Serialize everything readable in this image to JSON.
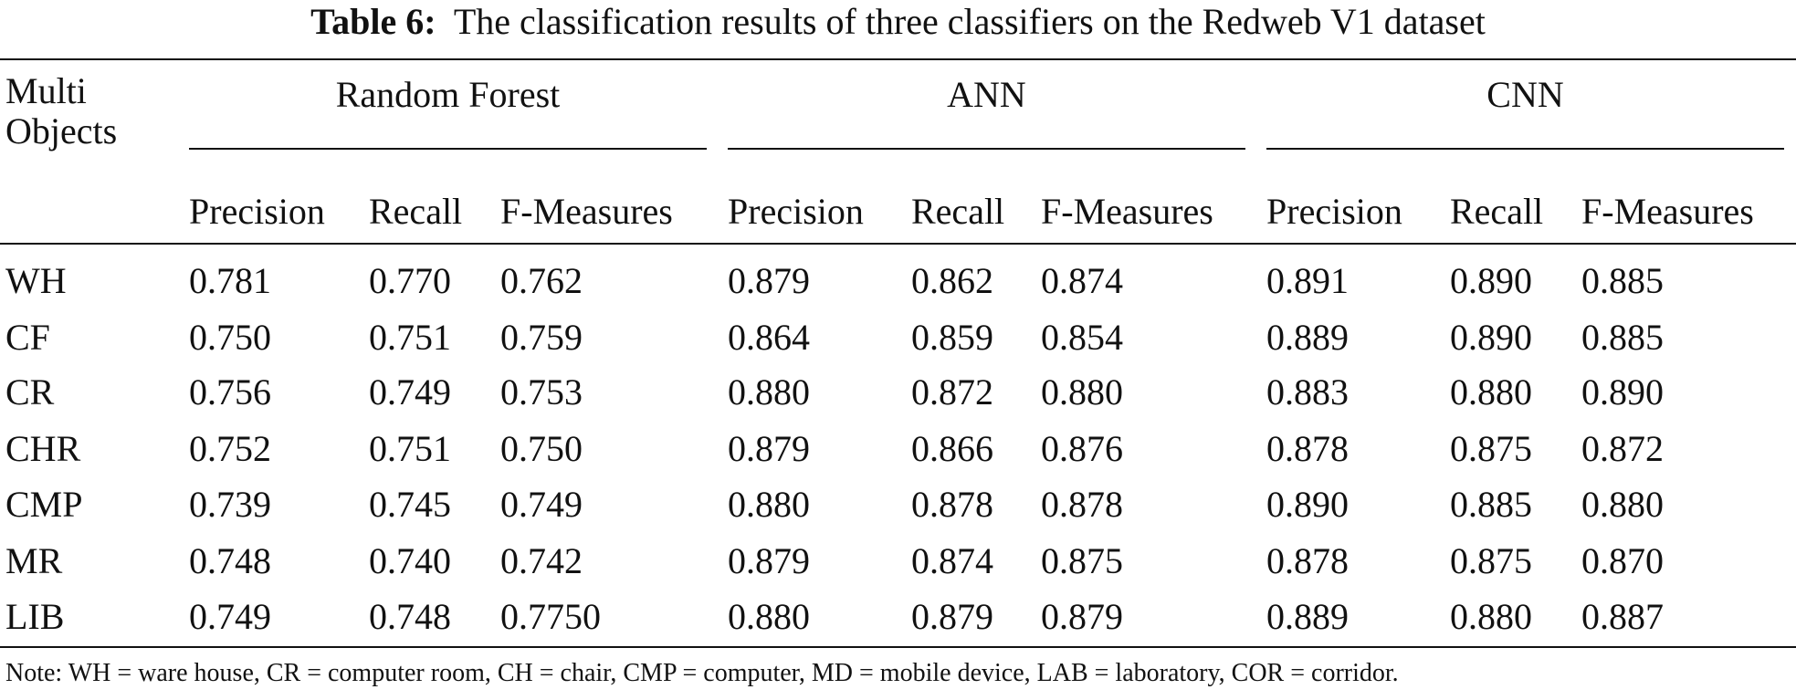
{
  "title": {
    "label": "Table 6:",
    "text": "The classification results of three classifiers on the Redweb V1 dataset"
  },
  "table": {
    "corner": "Multi Objects",
    "groups": [
      "Random Forest",
      "ANN",
      "CNN"
    ],
    "subheaders": [
      "Precision",
      "Recall",
      "F-Measures",
      "Precision",
      "Recall",
      "F-Measures",
      "Precision",
      "Recall",
      "F-Measures"
    ],
    "rows": [
      [
        "WH",
        "0.781",
        "0.770",
        "0.762",
        "0.879",
        "0.862",
        "0.874",
        "0.891",
        "0.890",
        "0.885"
      ],
      [
        "CF",
        "0.750",
        "0.751",
        "0.759",
        "0.864",
        "0.859",
        "0.854",
        "0.889",
        "0.890",
        "0.885"
      ],
      [
        "CR",
        "0.756",
        "0.749",
        "0.753",
        "0.880",
        "0.872",
        "0.880",
        "0.883",
        "0.880",
        "0.890"
      ],
      [
        "CHR",
        "0.752",
        "0.751",
        "0.750",
        "0.879",
        "0.866",
        "0.876",
        "0.878",
        "0.875",
        "0.872"
      ],
      [
        "CMP",
        "0.739",
        "0.745",
        "0.749",
        "0.880",
        "0.878",
        "0.878",
        "0.890",
        "0.885",
        "0.880"
      ],
      [
        "MR",
        "0.748",
        "0.740",
        "0.742",
        "0.879",
        "0.874",
        "0.875",
        "0.878",
        "0.875",
        "0.870"
      ],
      [
        "LIB",
        "0.749",
        "0.748",
        "0.7750",
        "0.880",
        "0.879",
        "0.879",
        "0.889",
        "0.880",
        "0.887"
      ]
    ]
  },
  "note": "Note: WH = ware house, CR = computer room, CH = chair, CMP = computer, MD = mobile device, LAB = laboratory, COR = corridor."
}
